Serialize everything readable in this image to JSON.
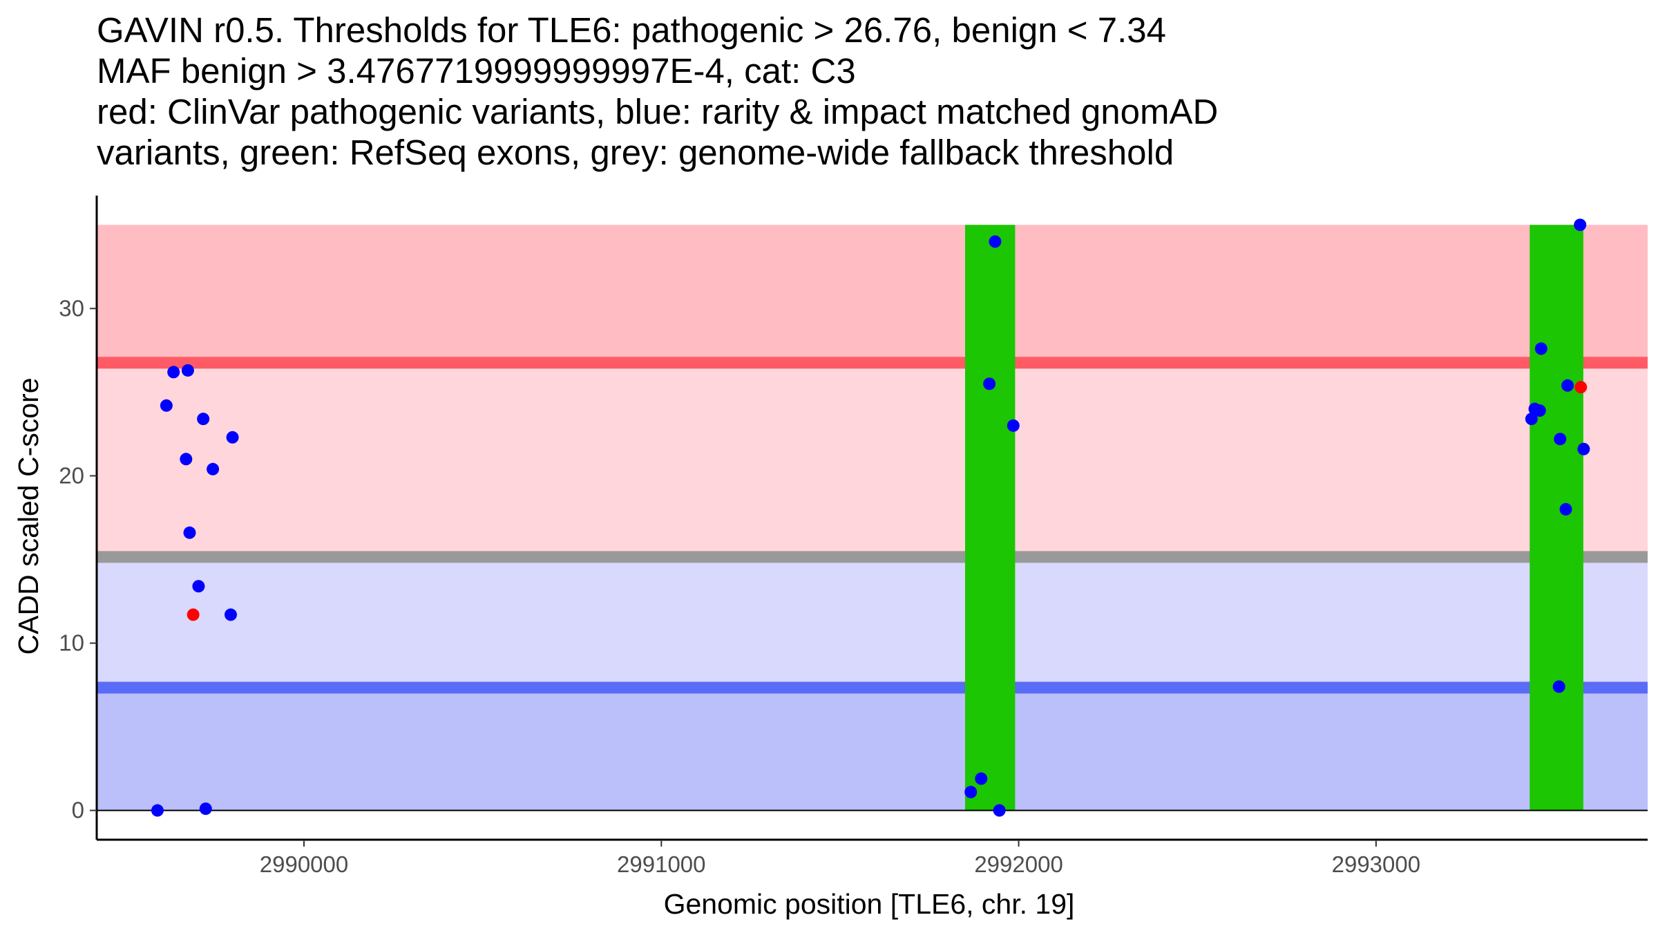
{
  "chart_data": {
    "type": "scatter",
    "title_lines": [
      "GAVIN r0.5. Thresholds for TLE6: pathogenic > 26.76, benign < 7.34",
      "MAF benign > 3.4767719999999997E-4, cat: C3",
      "red: ClinVar pathogenic variants, blue: rarity & impact matched gnomAD",
      "variants, green: RefSeq exons, grey: genome-wide fallback threshold"
    ],
    "xlabel": "Genomic position [TLE6, chr. 19]",
    "ylabel": "CADD scaled C-score",
    "xlim": [
      2989420,
      2993760
    ],
    "ylim": [
      -1.75,
      36.75
    ],
    "x_ticks": [
      2990000,
      2991000,
      2992000,
      2993000
    ],
    "x_tick_labels": [
      "2990000",
      "2991000",
      "2992000",
      "2993000"
    ],
    "y_ticks": [
      0,
      10,
      20,
      30
    ],
    "y_tick_labels": [
      "0",
      "10",
      "20",
      "30"
    ],
    "x_axis_line_at_y": 0,
    "bands": [
      {
        "name": "pathogenic-zone",
        "y0": 26.76,
        "y1": 35,
        "color": "#ffbcc2"
      },
      {
        "name": "uncertain-upper-zone",
        "y0": 15.15,
        "y1": 26.76,
        "color": "#ffd6dc"
      },
      {
        "name": "uncertain-lower-zone",
        "y0": 7.34,
        "y1": 15.15,
        "color": "#d8d9fc"
      },
      {
        "name": "benign-zone",
        "y0": 0,
        "y1": 7.34,
        "color": "#bbbffa"
      }
    ],
    "threshold_lines": [
      {
        "name": "pathogenic-threshold",
        "y": 26.76,
        "color": "#ff5a66"
      },
      {
        "name": "fallback-threshold",
        "y": 15.15,
        "color": "#999999"
      },
      {
        "name": "benign-threshold",
        "y": 7.34,
        "color": "#5a6cf5"
      }
    ],
    "exons": [
      {
        "x0": 2991850,
        "x1": 2991990,
        "y0": 0,
        "y1": 35,
        "color": "#1cc603"
      },
      {
        "x0": 2993430,
        "x1": 2993580,
        "y0": 0,
        "y1": 35,
        "color": "#1cc603"
      }
    ],
    "series": [
      {
        "name": "gnomAD matched variants",
        "color": "#0000ff",
        "points": [
          {
            "x": 2989590,
            "y": 0.0
          },
          {
            "x": 2989615,
            "y": 24.2
          },
          {
            "x": 2989635,
            "y": 26.2
          },
          {
            "x": 2989675,
            "y": 26.3
          },
          {
            "x": 2989670,
            "y": 21.0
          },
          {
            "x": 2989680,
            "y": 16.6
          },
          {
            "x": 2989705,
            "y": 13.4
          },
          {
            "x": 2989718,
            "y": 23.4
          },
          {
            "x": 2989725,
            "y": 0.1
          },
          {
            "x": 2989745,
            "y": 20.4
          },
          {
            "x": 2989795,
            "y": 11.7
          },
          {
            "x": 2989800,
            "y": 22.3
          },
          {
            "x": 2991866,
            "y": 1.1
          },
          {
            "x": 2991895,
            "y": 1.9
          },
          {
            "x": 2991918,
            "y": 25.5
          },
          {
            "x": 2991934,
            "y": 34.0
          },
          {
            "x": 2991946,
            "y": 0.0
          },
          {
            "x": 2991985,
            "y": 23.0
          },
          {
            "x": 2993435,
            "y": 23.4
          },
          {
            "x": 2993444,
            "y": 24.0
          },
          {
            "x": 2993458,
            "y": 23.9
          },
          {
            "x": 2993462,
            "y": 27.6
          },
          {
            "x": 2993512,
            "y": 7.4
          },
          {
            "x": 2993515,
            "y": 22.2
          },
          {
            "x": 2993531,
            "y": 18.0
          },
          {
            "x": 2993536,
            "y": 25.4
          },
          {
            "x": 2993571,
            "y": 35.0
          },
          {
            "x": 2993581,
            "y": 21.6
          }
        ]
      },
      {
        "name": "ClinVar pathogenic variants",
        "color": "#ff0000",
        "points": [
          {
            "x": 2989690,
            "y": 11.7
          },
          {
            "x": 2993573,
            "y": 25.3
          }
        ]
      }
    ]
  }
}
